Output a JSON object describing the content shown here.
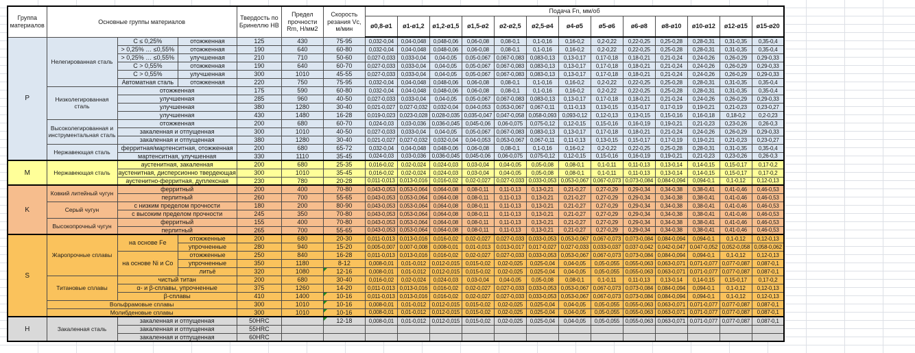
{
  "header": {
    "col_headers": [
      "Группа материалов",
      "Основные группы материалов",
      "Твердость по Бринеллю HB",
      "Предел прочности Rm, Н/мм2",
      "Скорость резания Vc, м/мин"
    ],
    "feed_title": "Подача Fn, мм/об",
    "diameters": [
      "ø0,8-ø1",
      "ø1-ø1,2",
      "ø1,2-ø1,5",
      "ø1,5-ø2",
      "ø2-ø2,5",
      "ø2,5-ø4",
      "ø4-ø5",
      "ø5-ø6",
      "ø6-ø8",
      "ø8-ø10",
      "ø10-ø12",
      "ø12-ø15",
      "ø15-ø20"
    ]
  },
  "colors": {
    "group_p": "#dce6f1",
    "group_m": "#ffff99",
    "group_k": "#f6bd8d",
    "group_s": "#fac25c",
    "group_h": "#d9d9d9",
    "error_indicator": "#1e8a1e"
  },
  "feed_patterns": {
    "A": [
      "0,032-0,04",
      "0,04-0,048",
      "0,048-0,06",
      "0,06-0,08",
      "0,08-0,1",
      "0,1-0,16",
      "0,16-0,2",
      "0,2-0,22",
      "0,22-0,25",
      "0,25-0,28",
      "0,28-0,31",
      "0,31-0,35",
      "0,35-0,4"
    ],
    "B": [
      "0,027-0,033",
      "0,033-0,04",
      "0,04-0,05",
      "0,05-0,067",
      "0,067-0,083",
      "0,083-0,13",
      "0,13-0,17",
      "0,17-0,18",
      "0,18-0,21",
      "0,21-0,24",
      "0,24-0,26",
      "0,26-0,29",
      "0,29-0,33"
    ],
    "C": [
      "0,021-0,027",
      "0,027-0,032",
      "0,032-0,04",
      "0,04-0,053",
      "0,053-0,067",
      "0,067-0,11",
      "0,11-0,13",
      "0,13-0,15",
      "0,15-0,17",
      "0,17-0,19",
      "0,19-0,21",
      "0,21-0,23",
      "0,23-0,27"
    ],
    "D": [
      "0,019-0,023",
      "0,023-0,028",
      "0,028-0,035",
      "0,035-0,047",
      "0,047-0,058",
      "0,058-0,093",
      "0,093-0,12",
      "0,12-0,13",
      "0,13-0,15",
      "0,15-0,16",
      "0,16-0,18",
      "0,18-0,2",
      "0,2-0,23"
    ],
    "E": [
      "0,024-0,03",
      "0,03-0,036",
      "0,036-0,045",
      "0,045-0,06",
      "0,06-0,075",
      "0,075-0,12",
      "0,12-0,15",
      "0,15-0,16",
      "0,16-0,19",
      "0,19-0,21",
      "0,21-0,23",
      "0,23-0,26",
      "0,26-0,3"
    ],
    "F": [
      "0,011-0,013",
      "0,013-0,016",
      "0,016-0,02",
      "0,02-0,027",
      "0,027-0,033",
      "0,033-0,053",
      "0,053-0,067",
      "0,067-0,073",
      "0,073-0,084",
      "0,084-0,094",
      "0,094-0,1",
      "0,1-0,12",
      "0,12-0,13"
    ],
    "G": [
      "0,016-0,02",
      "0,02-0,024",
      "0,024-0,03",
      "0,03-0,04",
      "0,04-0,05",
      "0,05-0,08",
      "0,08-0,1",
      "0,1-0,11",
      "0,11-0,13",
      "0,13-0,14",
      "0,14-0,15",
      "0,15-0,17",
      "0,17-0,2"
    ],
    "H2": [
      "0,005-0,007",
      "0,007-0,008",
      "0,008-0,01",
      "0,01-0,013",
      "0,013-0,017",
      "0,017-0,027",
      "0,027-0,033",
      "0,033-0,037",
      "0,037-0,042",
      "0,042-0,047",
      "0,047-0,052",
      "0,052-0,058",
      "0,058-0,062"
    ],
    "I": [
      "0,008-0,01",
      "0,01-0,012",
      "0,012-0,015",
      "0,015-0,02",
      "0,02-0,025",
      "0,025-0,04",
      "0,04-0,05",
      "0,05-0,055",
      "0,055-0,063",
      "0,063-0,071",
      "0,071-0,077",
      "0,077-0,087",
      "0,087-0,1"
    ],
    "K": [
      "0,043-0,053",
      "0,053-0,064",
      "0,064-0,08",
      "0,08-0,11",
      "0,11-0,13",
      "0,13-0,21",
      "0,21-0,27",
      "0,27-0,29",
      "0,29-0,34",
      "0,34-0,38",
      "0,38-0,41",
      "0,41-0,46",
      "0,46-0,53"
    ],
    "X": [
      "",
      "",
      "",
      "",
      "",
      "",
      "",
      "",
      "",
      "",
      "",
      "",
      ""
    ]
  },
  "rows": [
    {
      "grp": "p",
      "cells": [
        [
          "P",
          1,
          15,
          "g"
        ],
        [
          "Нелегированная сталь",
          1,
          6,
          "nm"
        ],
        [
          "C ≤ 0,25%",
          1,
          1,
          "tx"
        ],
        [
          "отожженная",
          1,
          1,
          "tx"
        ]
      ],
      "hb": "125",
      "rm": "430",
      "vc": "75-95",
      "feed": "A"
    },
    {
      "grp": "p",
      "cells": [
        [
          "> 0,25% … ≤0,55%",
          1,
          1,
          "tx"
        ],
        [
          "отожженная",
          1,
          1,
          "tx"
        ]
      ],
      "hb": "190",
      "rm": "640",
      "vc": "60-80",
      "feed": "A"
    },
    {
      "grp": "p",
      "cells": [
        [
          "> 0,25% … ≤0,55%",
          1,
          1,
          "tx"
        ],
        [
          "улучшенная",
          1,
          1,
          "tx"
        ]
      ],
      "hb": "210",
      "rm": "710",
      "vc": "50-60",
      "feed": "B"
    },
    {
      "grp": "p",
      "cells": [
        [
          "C > 0,55%",
          1,
          1,
          "tx"
        ],
        [
          "отожженная",
          1,
          1,
          "tx"
        ]
      ],
      "hb": "190",
      "rm": "640",
      "vc": "60-70",
      "feed": "B"
    },
    {
      "grp": "p",
      "cells": [
        [
          "C > 0,55%",
          1,
          1,
          "tx"
        ],
        [
          "улучшенная",
          1,
          1,
          "tx"
        ]
      ],
      "hb": "300",
      "rm": "1010",
      "vc": "45-55",
      "feed": "B"
    },
    {
      "grp": "p",
      "cells": [
        [
          "Автоматная сталь",
          1,
          1,
          "tx"
        ],
        [
          "отожженная",
          1,
          1,
          "tx"
        ]
      ],
      "hb": "220",
      "rm": "750",
      "vc": "75-95",
      "feed": "A"
    },
    {
      "grp": "p",
      "cells": [
        [
          "Низколегированная сталь",
          1,
          4,
          "nm"
        ],
        [
          "отожженная",
          2,
          1,
          "tx"
        ]
      ],
      "hb": "175",
      "rm": "590",
      "vc": "60-80",
      "feed": "A"
    },
    {
      "grp": "p",
      "cells": [
        [
          "улучшенная",
          2,
          1,
          "tx"
        ]
      ],
      "hb": "285",
      "rm": "960",
      "vc": "40-50",
      "feed": "B"
    },
    {
      "grp": "p",
      "cells": [
        [
          "улучшенная",
          2,
          1,
          "tx"
        ]
      ],
      "hb": "380",
      "rm": "1280",
      "vc": "30-40",
      "feed": "C"
    },
    {
      "grp": "p",
      "cells": [
        [
          "улучшенная",
          2,
          1,
          "tx"
        ]
      ],
      "hb": "430",
      "rm": "1480",
      "vc": "16-28",
      "feed": "D"
    },
    {
      "grp": "p",
      "cells": [
        [
          "Высоколегированная и инструментальная сталь",
          1,
          3,
          "nm"
        ],
        [
          "отожженная",
          2,
          1,
          "tx"
        ]
      ],
      "hb": "200",
      "rm": "680",
      "vc": "60-70",
      "feed": "E"
    },
    {
      "grp": "p",
      "cells": [
        [
          "закаленная и отпущенная",
          2,
          1,
          "tx"
        ]
      ],
      "hb": "300",
      "rm": "1010",
      "vc": "40-50",
      "feed": "B"
    },
    {
      "grp": "p",
      "cells": [
        [
          "закаленная и отпущенная",
          2,
          1,
          "tx"
        ]
      ],
      "hb": "380",
      "rm": "1280",
      "vc": "30-40",
      "feed": "C"
    },
    {
      "grp": "p",
      "cells": [
        [
          "Нержавеющая сталь",
          1,
          2,
          "nm"
        ],
        [
          "ферритная/мартенситная, отожженная",
          2,
          1,
          "tx"
        ]
      ],
      "hb": "200",
      "rm": "680",
      "vc": "65-72",
      "feed": "A"
    },
    {
      "grp": "p",
      "cells": [
        [
          "мартенситная, улучшенная",
          2,
          1,
          "tx"
        ]
      ],
      "hb": "330",
      "rm": "1110",
      "vc": "35-45",
      "feed": "E"
    },
    {
      "grp": "m",
      "bs": true,
      "cells": [
        [
          "M",
          1,
          3,
          "g"
        ],
        [
          "Нержавеющая сталь",
          1,
          3,
          "nm"
        ],
        [
          "аустенитная, закаленная",
          2,
          1,
          "tx"
        ]
      ],
      "hb": "200",
      "rm": "680",
      "vc": "25-35",
      "feed": "G"
    },
    {
      "grp": "m",
      "cells": [
        [
          "аустенитная, дисперсионно твердеющая",
          2,
          1,
          "tx"
        ]
      ],
      "hb": "300",
      "rm": "1010",
      "vc": "35-45",
      "feed": "G"
    },
    {
      "grp": "m",
      "cells": [
        [
          "аустенитно-ферритная, дуплексная",
          2,
          1,
          "tx"
        ]
      ],
      "hb": "230",
      "rm": "780",
      "vc": "20-28",
      "feed": "F"
    },
    {
      "grp": "k",
      "bs": true,
      "cells": [
        [
          "K",
          1,
          6,
          "g"
        ],
        [
          "Ковкий литейный чугун",
          1,
          2,
          "nm"
        ],
        [
          "ферритный",
          2,
          1,
          "tx"
        ]
      ],
      "hb": "200",
      "rm": "400",
      "vc": "70-80",
      "feed": "K"
    },
    {
      "grp": "k",
      "cells": [
        [
          "перлитный",
          2,
          1,
          "tx"
        ]
      ],
      "hb": "260",
      "rm": "700",
      "vc": "55-65",
      "feed": "K"
    },
    {
      "grp": "k",
      "cells": [
        [
          "Серый чугун",
          1,
          2,
          "nm"
        ],
        [
          "с низким пределом прочности",
          2,
          1,
          "tx"
        ]
      ],
      "hb": "180",
      "rm": "200",
      "vc": "80-90",
      "feed": "K"
    },
    {
      "grp": "k",
      "cells": [
        [
          "с высоким пределом прочности",
          2,
          1,
          "tx"
        ]
      ],
      "hb": "245",
      "rm": "350",
      "vc": "70-80",
      "feed": "K"
    },
    {
      "grp": "k",
      "cells": [
        [
          "Высокопрочный чугун",
          1,
          2,
          "nm"
        ],
        [
          "ферритный",
          2,
          1,
          "tx"
        ]
      ],
      "hb": "155",
      "rm": "400",
      "vc": "70-80",
      "feed": "K"
    },
    {
      "grp": "k",
      "cells": [
        [
          "перлитный",
          2,
          1,
          "tx"
        ]
      ],
      "hb": "265",
      "rm": "700",
      "vc": "55-65",
      "feed": "K"
    },
    {
      "grp": "s",
      "bs": true,
      "cells": [
        [
          "S",
          1,
          10,
          "g"
        ],
        [
          "Жаропрочные сплавы",
          1,
          5,
          "nm"
        ],
        [
          "на основе Fe",
          1,
          2,
          "tx"
        ],
        [
          "отожженные",
          1,
          1,
          "tx"
        ]
      ],
      "hb": "200",
      "rm": "680",
      "vc": "20-30",
      "feed": "F"
    },
    {
      "grp": "s",
      "cells": [
        [
          "упрочненные",
          1,
          1,
          "tx"
        ]
      ],
      "hb": "280",
      "rm": "940",
      "vc": "15-20",
      "feed": "H2"
    },
    {
      "grp": "s",
      "cells": [
        [
          "на основе Ni и Co",
          1,
          3,
          "tx"
        ],
        [
          "отожженные",
          1,
          1,
          "tx"
        ]
      ],
      "hb": "250",
      "rm": "840",
      "vc": "16-28",
      "feed": "F"
    },
    {
      "grp": "s",
      "cells": [
        [
          "упрочненные",
          1,
          1,
          "tx"
        ]
      ],
      "hb": "350",
      "rm": "1180",
      "vc": "8-12",
      "feed": "I"
    },
    {
      "grp": "s",
      "cells": [
        [
          "литьё",
          1,
          1,
          "tx"
        ]
      ],
      "hb": "320",
      "rm": "1080",
      "vc": "12-16",
      "green": true,
      "feed": "I"
    },
    {
      "grp": "s",
      "cells": [
        [
          "Титановые сплавы",
          1,
          3,
          "nm"
        ],
        [
          "чистый титан",
          2,
          1,
          "tx"
        ]
      ],
      "hb": "200",
      "rm": "680",
      "vc": "30-40",
      "feed": "G"
    },
    {
      "grp": "s",
      "cells": [
        [
          "α- и β-сплавы, упрочненные",
          2,
          1,
          "tx"
        ]
      ],
      "hb": "375",
      "rm": "1260",
      "vc": "14-20",
      "feed": "F"
    },
    {
      "grp": "s",
      "cells": [
        [
          "β-сплавы",
          2,
          1,
          "tx"
        ]
      ],
      "hb": "410",
      "rm": "1400",
      "vc": "10-16",
      "green": true,
      "feed": "F"
    },
    {
      "grp": "s",
      "cells": [
        [
          "Вольфрамовые сплавы",
          3,
          1,
          "nm"
        ]
      ],
      "hb": "300",
      "rm": "1010",
      "vc": "10-16",
      "green": true,
      "feed": "I"
    },
    {
      "grp": "s",
      "cells": [
        [
          "Молибденовые сплавы",
          3,
          1,
          "nm"
        ]
      ],
      "hb": "300",
      "rm": "1010",
      "vc": "10-16",
      "green": true,
      "feed": "I"
    },
    {
      "grp": "h",
      "bs": true,
      "cells": [
        [
          "H",
          1,
          3,
          "g"
        ],
        [
          "Закаленная сталь",
          1,
          3,
          "nm"
        ],
        [
          "закаленная и отпущенная",
          2,
          1,
          "tx"
        ]
      ],
      "hb": "50HRC",
      "rm": "",
      "vc": "12-18",
      "green": true,
      "feed": "I"
    },
    {
      "grp": "h",
      "cells": [
        [
          "закаленная и отпущенная",
          2,
          1,
          "tx"
        ]
      ],
      "hb": "55HRC",
      "rm": "",
      "vc": "",
      "feed": "X"
    },
    {
      "grp": "h",
      "cells": [
        [
          "закаленная и отпущенная",
          2,
          1,
          "tx"
        ]
      ],
      "hb": "60HRC",
      "rm": "",
      "vc": "",
      "feed": "X"
    }
  ]
}
